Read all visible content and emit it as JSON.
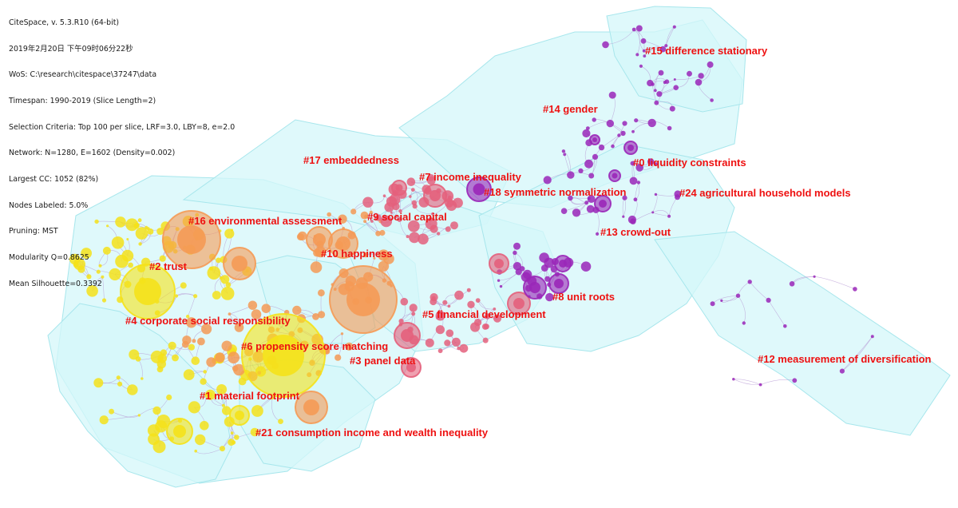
{
  "info_lines": [
    "CiteSpace, v. 5.3.R10 (64-bit)",
    "2019年2月20日 下午09时06分22秒",
    "WoS: C:\\research\\citespace\\37247\\data",
    "Timespan: 1990-2019 (Slice Length=2)",
    "Selection Criteria: Top 100 per slice, LRF=3.0, LBY=8, e=2.0",
    "Network: N=1280, E=1602 (Density=0.002)",
    "Largest CC: 1052 (82%)",
    "Nodes Labeled: 5.0%",
    "Pruning: MST",
    "Modularity Q=0.8625",
    "Mean Silhouette=0.3392"
  ],
  "colors": {
    "hull_fill": "#d4f7f9",
    "hull_stroke": "#a7e6ec",
    "label": "#ee1111",
    "edge": "#b79ad4",
    "node_yellow": "#f5e21a",
    "node_orange": "#f59a55",
    "node_pink": "#e4607c",
    "node_purple": "#9a27b8"
  },
  "clusters": [
    {
      "id": "0",
      "label": "#0 liquidity constraints"
    },
    {
      "id": "1",
      "label": "#1 material footprint"
    },
    {
      "id": "2",
      "label": "#2 trust"
    },
    {
      "id": "3",
      "label": "#3 panel data"
    },
    {
      "id": "4",
      "label": "#4 corporate social responsibility"
    },
    {
      "id": "5",
      "label": "#5 financial development"
    },
    {
      "id": "6",
      "label": "#6 propensity score matching"
    },
    {
      "id": "7",
      "label": "#7 income inequality"
    },
    {
      "id": "8",
      "label": "#8 unit roots"
    },
    {
      "id": "9",
      "label": "#9 social capital"
    },
    {
      "id": "10",
      "label": "#10 happiness"
    },
    {
      "id": "12",
      "label": "#12 measurement of diversification"
    },
    {
      "id": "13",
      "label": "#13 crowd-out"
    },
    {
      "id": "14",
      "label": "#14 gender"
    },
    {
      "id": "15",
      "label": "#15 difference stationary"
    },
    {
      "id": "16",
      "label": "#16 environmental assessment"
    },
    {
      "id": "17",
      "label": "#17 embeddedness"
    },
    {
      "id": "18",
      "label": "#18 symmetric normalization"
    },
    {
      "id": "21",
      "label": "#21 consumption income and wealth inequality"
    },
    {
      "id": "24",
      "label": "#24 agricultural household models"
    }
  ]
}
